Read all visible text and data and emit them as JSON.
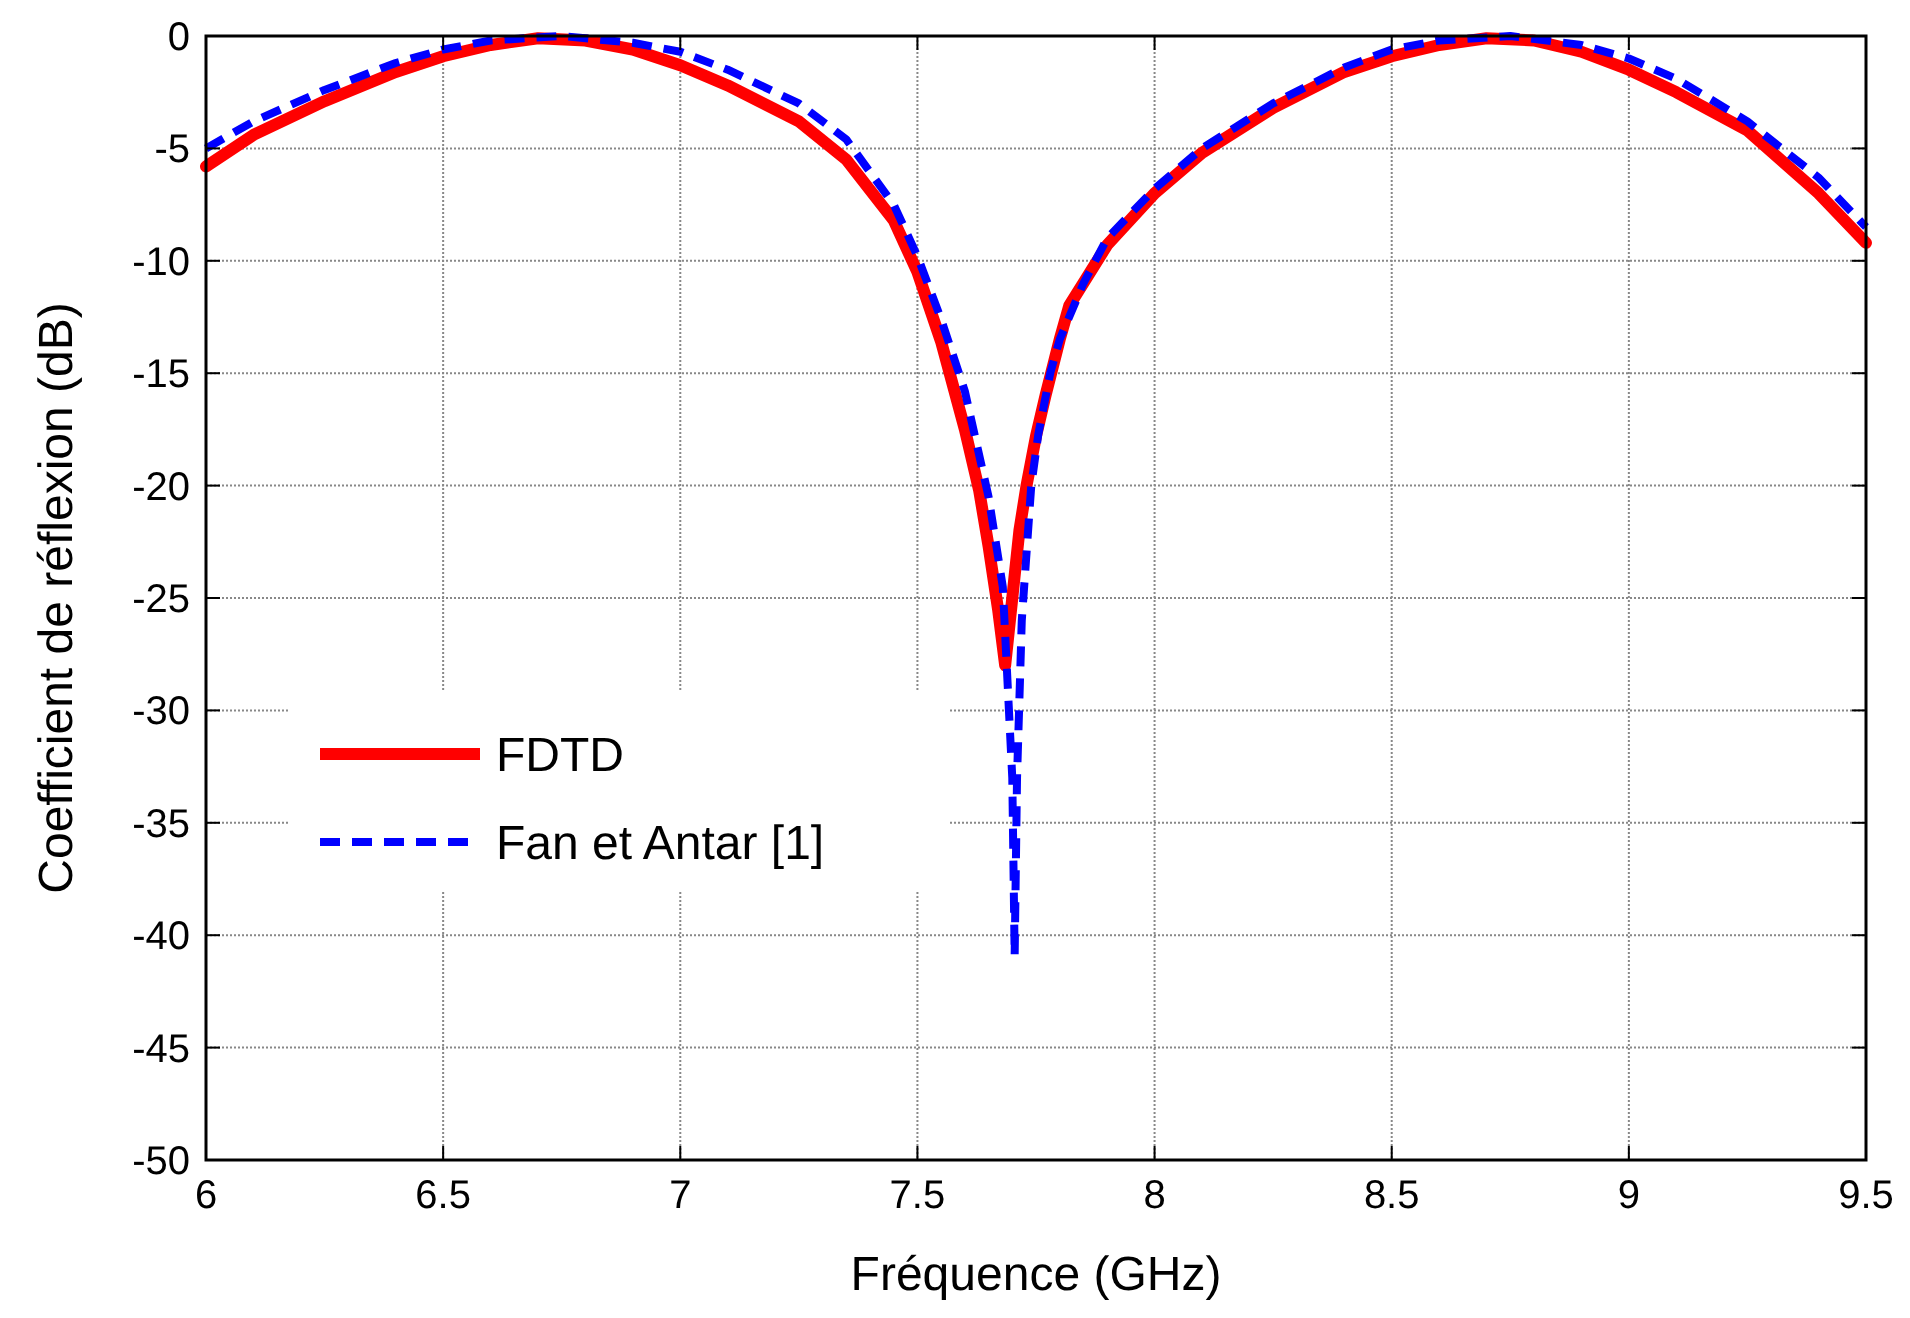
{
  "chart_data": {
    "type": "line",
    "xlabel": "Fréquence (GHz)",
    "ylabel": "Coefficient de réflexion (dB)",
    "xlim": [
      6,
      9.5
    ],
    "ylim": [
      -50,
      0
    ],
    "xticks": [
      6,
      6.5,
      7,
      7.5,
      8,
      8.5,
      9,
      9.5
    ],
    "yticks": [
      -50,
      -45,
      -40,
      -35,
      -30,
      -25,
      -20,
      -15,
      -10,
      -5,
      0
    ],
    "grid": true,
    "legend": "left",
    "marker": "none",
    "series": [
      {
        "name": "FDTD",
        "color": "#ff0000",
        "line_style": "solid",
        "x": [
          6,
          6.1,
          6.25,
          6.4,
          6.5,
          6.6,
          6.7,
          6.8,
          6.9,
          7,
          7.1,
          7.25,
          7.35,
          7.45,
          7.5,
          7.55,
          7.6,
          7.63,
          7.65,
          7.67,
          7.685,
          7.7,
          7.715,
          7.73,
          7.75,
          7.77,
          7.8,
          7.82,
          7.9,
          8,
          8.1,
          8.25,
          8.4,
          8.5,
          8.6,
          8.7,
          8.8,
          8.9,
          9,
          9.1,
          9.25,
          9.4,
          9.5
        ],
        "values": [
          -5.8,
          -4.4,
          -2.9,
          -1.6,
          -0.9,
          -0.4,
          -0.1,
          -0.2,
          -0.6,
          -1.3,
          -2.2,
          -3.8,
          -5.5,
          -8.2,
          -10.5,
          -13.6,
          -17.5,
          -20.2,
          -22.7,
          -25.5,
          -28,
          -25,
          -22,
          -20,
          -17.8,
          -16,
          -13.5,
          -12,
          -9.3,
          -7,
          -5.2,
          -3.2,
          -1.6,
          -0.9,
          -0.4,
          -0.1,
          -0.2,
          -0.7,
          -1.5,
          -2.5,
          -4.2,
          -7,
          -9.2
        ]
      },
      {
        "name": "Fan et Antar [1]",
        "color": "#0000ff",
        "line_style": "dashed",
        "x": [
          6,
          6.1,
          6.25,
          6.4,
          6.5,
          6.6,
          6.75,
          6.9,
          7,
          7.1,
          7.25,
          7.35,
          7.45,
          7.5,
          7.55,
          7.6,
          7.65,
          7.68,
          7.7,
          7.705,
          7.71,
          7.72,
          7.74,
          7.755,
          7.78,
          7.8,
          7.85,
          7.9,
          8,
          8.1,
          8.25,
          8.4,
          8.5,
          8.6,
          8.75,
          8.9,
          9,
          9.1,
          9.25,
          9.4,
          9.5
        ],
        "values": [
          -5,
          -3.8,
          -2.4,
          -1.2,
          -0.6,
          -0.2,
          0,
          -0.3,
          -0.7,
          -1.5,
          -3,
          -4.6,
          -7.5,
          -9.8,
          -12.6,
          -15.8,
          -20.5,
          -24.5,
          -33,
          -40.9,
          -33,
          -26,
          -20,
          -17.7,
          -15,
          -13.5,
          -11,
          -9,
          -6.8,
          -5,
          -3,
          -1.4,
          -0.6,
          -0.2,
          0,
          -0.4,
          -1,
          -1.9,
          -3.8,
          -6.3,
          -8.5
        ]
      }
    ]
  }
}
